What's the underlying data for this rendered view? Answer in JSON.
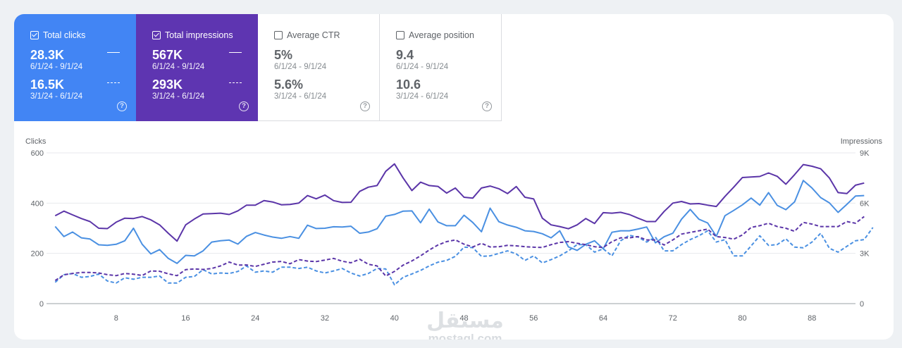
{
  "cards": [
    {
      "label": "Total clicks",
      "checked": true,
      "value_current": "28.3K",
      "range_current": "6/1/24 - 9/1/24",
      "value_previous": "16.5K",
      "range_previous": "3/1/24 - 6/1/24",
      "help": "?"
    },
    {
      "label": "Total impressions",
      "checked": true,
      "value_current": "567K",
      "range_current": "6/1/24 - 9/1/24",
      "value_previous": "293K",
      "range_previous": "3/1/24 - 6/1/24",
      "help": "?"
    },
    {
      "label": "Average CTR",
      "checked": false,
      "value_current": "5%",
      "range_current": "6/1/24 - 9/1/24",
      "value_previous": "5.6%",
      "range_previous": "3/1/24 - 6/1/24",
      "help": "?"
    },
    {
      "label": "Average position",
      "checked": false,
      "value_current": "9.4",
      "range_current": "6/1/24 - 9/1/24",
      "value_previous": "10.6",
      "range_previous": "3/1/24 - 6/1/24",
      "help": "?"
    }
  ],
  "watermark": {
    "arabic": "مستقل",
    "latin": "mostaql.com"
  },
  "chart_data": {
    "type": "line",
    "ylabel_left": "Clicks",
    "ylabel_right": "Impressions",
    "y_left_ticks": [
      "0",
      "200",
      "400",
      "600"
    ],
    "y_right_ticks": [
      "0",
      "3K",
      "6K",
      "9K"
    ],
    "ylim_left": [
      0,
      600
    ],
    "ylim_right": [
      0,
      9000
    ],
    "x_ticks": [
      "8",
      "16",
      "24",
      "32",
      "40",
      "48",
      "56",
      "64",
      "72",
      "80",
      "88"
    ],
    "xlim": [
      0,
      93
    ],
    "grid": true,
    "colors": {
      "clicks": "#4a90e2",
      "impressions": "#5b35a8"
    },
    "series": [
      {
        "axis": "left",
        "style": "solid",
        "color": "#4a90e2",
        "values": [
          307,
          267,
          285,
          262,
          257,
          234,
          232,
          236,
          250,
          300,
          236,
          198,
          215,
          180,
          160,
          192,
          190,
          210,
          245,
          250,
          253,
          237,
          268,
          283,
          273,
          265,
          260,
          267,
          260,
          312,
          299,
          300,
          306,
          305,
          308,
          280,
          285,
          298,
          348,
          355,
          368,
          369,
          322,
          376,
          325,
          310,
          310,
          352,
          323,
          286,
          380,
          326,
          313,
          304,
          290,
          287,
          278,
          262,
          290,
          226,
          212,
          236,
          250,
          218,
          284,
          290,
          290,
          297,
          305,
          242,
          266,
          280,
          336,
          375,
          336,
          321,
          268,
          350,
          371,
          393,
          420,
          392,
          442,
          391,
          374,
          405,
          490,
          460,
          422,
          401,
          363,
          395,
          428,
          430
        ]
      },
      {
        "axis": "right",
        "style": "solid",
        "color": "#5b35a8",
        "values": [
          5250,
          5520,
          5300,
          5080,
          4900,
          4500,
          4480,
          4860,
          5100,
          5080,
          5200,
          5000,
          4700,
          4200,
          3730,
          4700,
          5050,
          5350,
          5370,
          5400,
          5320,
          5540,
          5880,
          5880,
          6150,
          6070,
          5900,
          5920,
          6000,
          6450,
          6260,
          6480,
          6150,
          6040,
          6050,
          6700,
          6950,
          7050,
          7900,
          8340,
          7500,
          6750,
          7250,
          7050,
          7000,
          6600,
          6900,
          6350,
          6300,
          6900,
          7020,
          6860,
          6570,
          6990,
          6350,
          6250,
          5100,
          4700,
          4600,
          4470,
          4700,
          5080,
          4780,
          5430,
          5400,
          5450,
          5320,
          5100,
          4900,
          4900,
          5500,
          6000,
          6100,
          5950,
          5970,
          5880,
          5800,
          6400,
          6950,
          7530,
          7560,
          7590,
          7800,
          7600,
          7130,
          7700,
          8300,
          8200,
          8050,
          7500,
          6630,
          6570,
          7070,
          7200
        ]
      },
      {
        "axis": "left",
        "style": "dashed",
        "color": "#4a90e2",
        "values": [
          85,
          115,
          120,
          105,
          108,
          118,
          90,
          82,
          103,
          97,
          105,
          105,
          110,
          82,
          82,
          105,
          108,
          135,
          118,
          122,
          120,
          128,
          150,
          125,
          130,
          125,
          145,
          145,
          140,
          145,
          130,
          122,
          130,
          140,
          122,
          110,
          120,
          140,
          138,
          75,
          105,
          118,
          132,
          150,
          165,
          172,
          188,
          225,
          223,
          188,
          190,
          200,
          210,
          198,
          172,
          190,
          162,
          175,
          190,
          210,
          235,
          235,
          205,
          218,
          190,
          250,
          272,
          265,
          245,
          265,
          210,
          210,
          235,
          255,
          270,
          290,
          245,
          255,
          190,
          190,
          230,
          270,
          232,
          235,
          258,
          225,
          222,
          245,
          280,
          220,
          205,
          228,
          250,
          255,
          303
        ]
      },
      {
        "axis": "right",
        "style": "dashed",
        "color": "#5b35a8",
        "values": [
          1380,
          1720,
          1800,
          1860,
          1860,
          1830,
          1730,
          1670,
          1800,
          1760,
          1680,
          1950,
          1930,
          1780,
          1670,
          2030,
          2070,
          2040,
          2100,
          2250,
          2480,
          2300,
          2310,
          2220,
          2350,
          2480,
          2520,
          2380,
          2630,
          2540,
          2510,
          2600,
          2700,
          2530,
          2440,
          2650,
          2350,
          2250,
          1650,
          1920,
          2300,
          2550,
          2850,
          3200,
          3500,
          3700,
          3800,
          3550,
          3380,
          3600,
          3380,
          3400,
          3480,
          3450,
          3400,
          3370,
          3350,
          3520,
          3650,
          3700,
          3600,
          3520,
          3400,
          3350,
          3700,
          3930,
          3930,
          4000,
          3800,
          3800,
          3500,
          3800,
          4150,
          4250,
          4350,
          4450,
          4000,
          3950,
          3850,
          4100,
          4550,
          4650,
          4800,
          4600,
          4500,
          4320,
          4850,
          4750,
          4600,
          4600,
          4600,
          4900,
          4800,
          5200
        ]
      }
    ]
  }
}
